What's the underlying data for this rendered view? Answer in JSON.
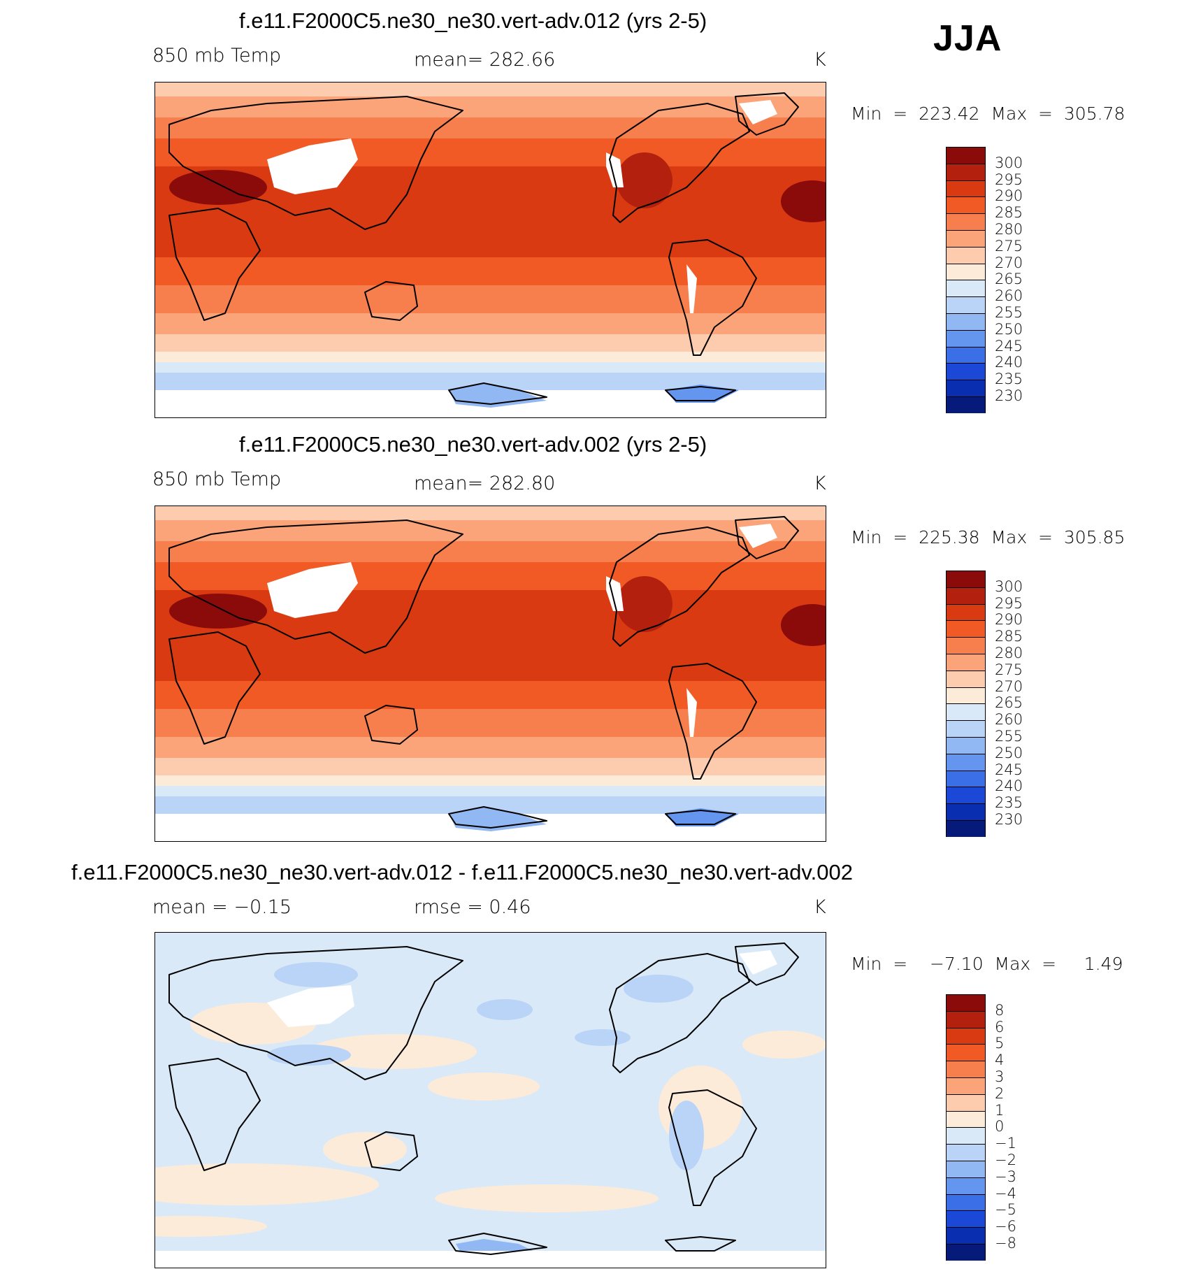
{
  "season": "JJA",
  "panels": [
    {
      "title": "f.e11.F2000C5.ne30_ne30.vert-adv.012 (yrs 2-5)",
      "left_label": "850 mb Temp",
      "center_label": "mean=  282.66",
      "units": "K",
      "minmax": "Min  =  223.42  Max  =  305.78",
      "colorbar": {
        "labels": [
          "300",
          "295",
          "290",
          "285",
          "280",
          "275",
          "270",
          "265",
          "260",
          "255",
          "250",
          "245",
          "240",
          "235",
          "230"
        ],
        "colors": [
          "#8b0a0a",
          "#b3200d",
          "#d93a12",
          "#f15a24",
          "#f77f4e",
          "#fba47a",
          "#fdcbad",
          "#fdebda",
          "#d9e9f8",
          "#b9d4f6",
          "#92b8f3",
          "#6596ef",
          "#3a6fe8",
          "#1b48d6",
          "#0a2eb0",
          "#061a7a"
        ]
      },
      "map_type": "temperature"
    },
    {
      "title": "f.e11.F2000C5.ne30_ne30.vert-adv.002 (yrs 2-5)",
      "left_label": "850 mb Temp",
      "center_label": "mean=  282.80",
      "units": "K",
      "minmax": "Min  =  225.38  Max  =  305.85",
      "colorbar": {
        "labels": [
          "300",
          "295",
          "290",
          "285",
          "280",
          "275",
          "270",
          "265",
          "260",
          "255",
          "250",
          "245",
          "240",
          "235",
          "230"
        ],
        "colors": [
          "#8b0a0a",
          "#b3200d",
          "#d93a12",
          "#f15a24",
          "#f77f4e",
          "#fba47a",
          "#fdcbad",
          "#fdebda",
          "#d9e9f8",
          "#b9d4f6",
          "#92b8f3",
          "#6596ef",
          "#3a6fe8",
          "#1b48d6",
          "#0a2eb0",
          "#061a7a"
        ]
      },
      "map_type": "temperature"
    },
    {
      "title": "f.e11.F2000C5.ne30_ne30.vert-adv.012 - f.e11.F2000C5.ne30_ne30.vert-adv.002",
      "left_label": "mean =    −0.15",
      "center_label": "rmse =     0.46",
      "units": "K",
      "minmax": "Min  =    −7.10  Max  =     1.49",
      "colorbar": {
        "labels": [
          "8",
          "6",
          "5",
          "4",
          "3",
          "2",
          "1",
          "0",
          "−1",
          "−2",
          "−3",
          "−4",
          "−5",
          "−6",
          "−8"
        ],
        "colors": [
          "#8b0a0a",
          "#b3200d",
          "#d93a12",
          "#f15a24",
          "#f77f4e",
          "#fba47a",
          "#fdcbad",
          "#fdebda",
          "#d9e9f8",
          "#b9d4f6",
          "#92b8f3",
          "#6596ef",
          "#3a6fe8",
          "#1b48d6",
          "#0a2eb0",
          "#061a7a"
        ]
      },
      "map_type": "difference"
    }
  ]
}
